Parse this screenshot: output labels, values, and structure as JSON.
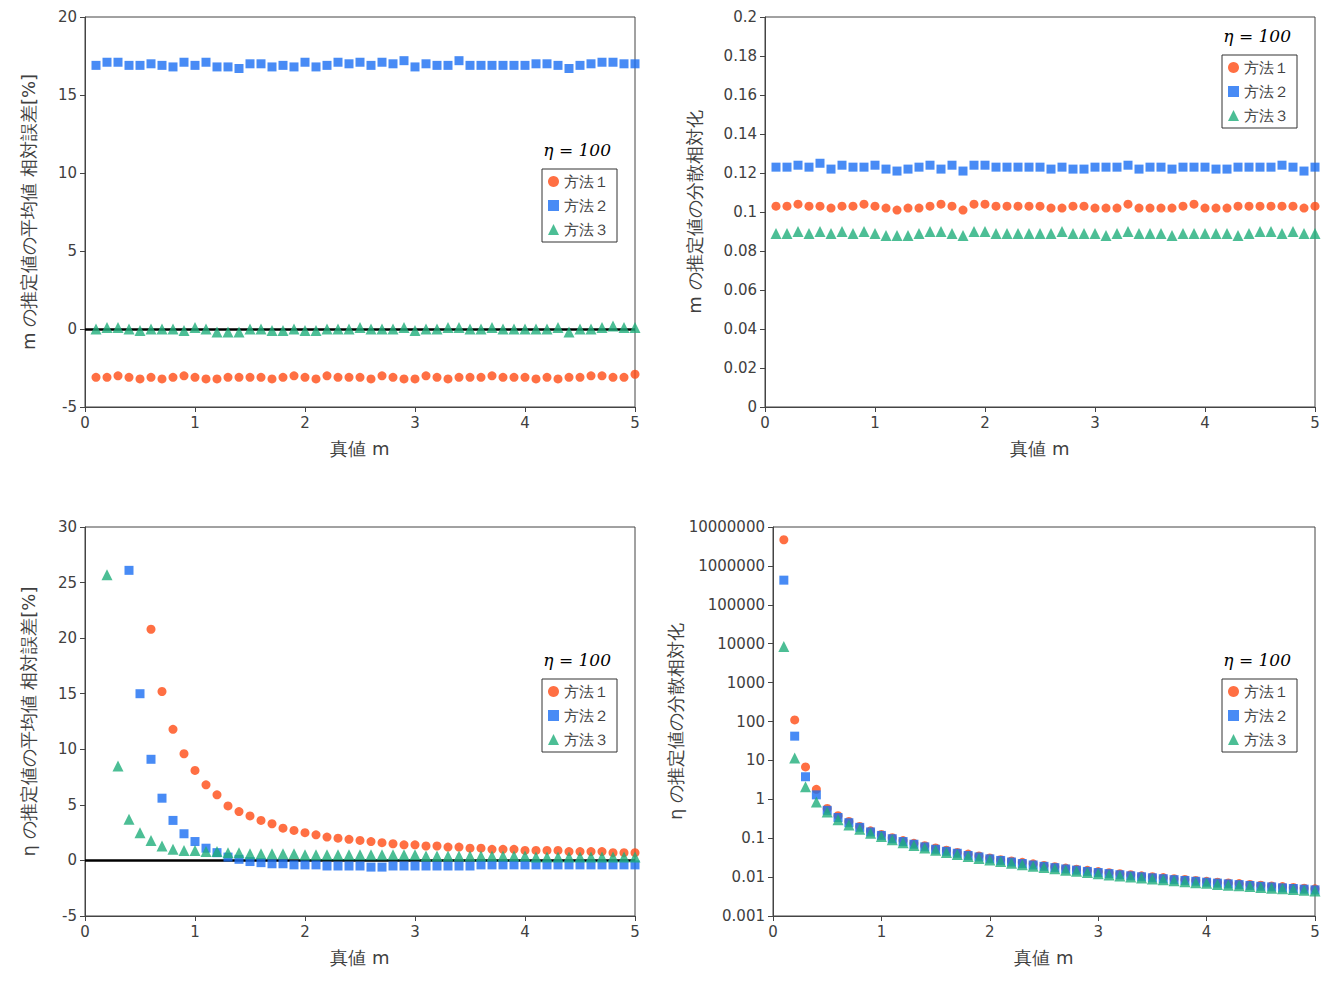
{
  "chart_data": [
    {
      "type": "scatter",
      "xlabel": "真値 m",
      "ylabel": "m の推定値の平均値 相対誤差[%]",
      "legend_title": "η = 100",
      "legend": "center right",
      "grid": false,
      "xlim": [
        0,
        5
      ],
      "xticks": [
        0,
        1,
        2,
        3,
        4,
        5
      ],
      "ylim": [
        -5,
        20
      ],
      "yticks": [
        -5,
        0,
        5,
        10,
        15,
        20
      ],
      "reference_line": 0,
      "x": [
        0.1,
        0.2,
        0.3,
        0.4,
        0.5,
        0.6,
        0.7,
        0.8,
        0.9,
        1.0,
        1.1,
        1.2,
        1.3,
        1.4,
        1.5,
        1.6,
        1.7,
        1.8,
        1.9,
        2.0,
        2.1,
        2.2,
        2.3,
        2.4,
        2.5,
        2.6,
        2.7,
        2.8,
        2.9,
        3.0,
        3.1,
        3.2,
        3.3,
        3.4,
        3.5,
        3.6,
        3.7,
        3.8,
        3.9,
        4.0,
        4.1,
        4.2,
        4.3,
        4.4,
        4.5,
        4.6,
        4.7,
        4.8,
        4.9,
        5.0
      ],
      "series": [
        {
          "name": "方法１",
          "color": "#ff4b14",
          "marker": "circle",
          "values": [
            -3.1,
            -3.1,
            -3.0,
            -3.1,
            -3.2,
            -3.1,
            -3.2,
            -3.1,
            -3.0,
            -3.1,
            -3.2,
            -3.2,
            -3.1,
            -3.1,
            -3.1,
            -3.1,
            -3.2,
            -3.1,
            -3.0,
            -3.1,
            -3.2,
            -3.0,
            -3.1,
            -3.1,
            -3.1,
            -3.2,
            -3.0,
            -3.1,
            -3.2,
            -3.2,
            -3.0,
            -3.1,
            -3.2,
            -3.1,
            -3.1,
            -3.1,
            -3.0,
            -3.1,
            -3.1,
            -3.1,
            -3.2,
            -3.1,
            -3.2,
            -3.1,
            -3.1,
            -3.0,
            -3.0,
            -3.1,
            -3.1,
            -2.9
          ]
        },
        {
          "name": "方法２",
          "color": "#1a6ef2",
          "marker": "square",
          "values": [
            16.9,
            17.1,
            17.1,
            16.9,
            16.9,
            17.0,
            16.9,
            16.8,
            17.1,
            16.9,
            17.1,
            16.8,
            16.8,
            16.7,
            17.0,
            17.0,
            16.8,
            16.9,
            16.8,
            17.1,
            16.8,
            16.9,
            17.1,
            17.0,
            17.1,
            16.9,
            17.1,
            17.0,
            17.2,
            16.8,
            17.0,
            16.9,
            16.9,
            17.2,
            16.9,
            16.9,
            16.9,
            16.9,
            16.9,
            16.9,
            17.0,
            17.0,
            16.9,
            16.7,
            16.9,
            17.0,
            17.1,
            17.1,
            17.0,
            17.0
          ]
        },
        {
          "name": "方法３",
          "color": "#1fae7a",
          "marker": "triangle",
          "values": [
            0.0,
            0.1,
            0.1,
            0.0,
            -0.1,
            0.0,
            0.0,
            0.0,
            -0.1,
            0.1,
            0.0,
            -0.2,
            -0.2,
            -0.2,
            0.0,
            0.0,
            -0.1,
            -0.1,
            0.0,
            -0.1,
            -0.1,
            0.0,
            0.0,
            0.0,
            0.1,
            0.0,
            0.0,
            0.0,
            0.1,
            -0.1,
            0.0,
            0.0,
            0.1,
            0.1,
            0.0,
            0.0,
            0.1,
            0.0,
            0.0,
            0.0,
            0.0,
            0.0,
            0.1,
            -0.2,
            0.0,
            0.0,
            0.1,
            0.2,
            0.1,
            0.1
          ]
        }
      ]
    },
    {
      "type": "scatter",
      "xlabel": "真値 m",
      "ylabel": "m の推定値の分散相対化",
      "legend_title": "η = 100",
      "legend": "upper right",
      "grid": false,
      "xlim": [
        0,
        5
      ],
      "xticks": [
        0,
        1,
        2,
        3,
        4,
        5
      ],
      "ylim": [
        0,
        0.2
      ],
      "yticks": [
        0,
        0.02,
        0.04,
        0.06,
        0.08,
        0.1,
        0.12,
        0.14,
        0.16,
        0.18,
        0.2
      ],
      "x": [
        0.1,
        0.2,
        0.3,
        0.4,
        0.5,
        0.6,
        0.7,
        0.8,
        0.9,
        1.0,
        1.1,
        1.2,
        1.3,
        1.4,
        1.5,
        1.6,
        1.7,
        1.8,
        1.9,
        2.0,
        2.1,
        2.2,
        2.3,
        2.4,
        2.5,
        2.6,
        2.7,
        2.8,
        2.9,
        3.0,
        3.1,
        3.2,
        3.3,
        3.4,
        3.5,
        3.6,
        3.7,
        3.8,
        3.9,
        4.0,
        4.1,
        4.2,
        4.3,
        4.4,
        4.5,
        4.6,
        4.7,
        4.8,
        4.9,
        5.0
      ],
      "series": [
        {
          "name": "方法１",
          "color": "#ff4b14",
          "marker": "circle",
          "values": [
            0.103,
            0.103,
            0.104,
            0.103,
            0.103,
            0.102,
            0.103,
            0.103,
            0.104,
            0.103,
            0.102,
            0.101,
            0.102,
            0.102,
            0.103,
            0.104,
            0.103,
            0.101,
            0.104,
            0.104,
            0.103,
            0.103,
            0.103,
            0.103,
            0.103,
            0.102,
            0.102,
            0.103,
            0.103,
            0.102,
            0.102,
            0.102,
            0.104,
            0.102,
            0.102,
            0.102,
            0.102,
            0.103,
            0.104,
            0.102,
            0.102,
            0.102,
            0.103,
            0.103,
            0.103,
            0.103,
            0.103,
            0.103,
            0.102,
            0.103
          ]
        },
        {
          "name": "方法２",
          "color": "#1a6ef2",
          "marker": "square",
          "values": [
            0.123,
            0.123,
            0.124,
            0.123,
            0.125,
            0.122,
            0.124,
            0.123,
            0.123,
            0.124,
            0.122,
            0.121,
            0.122,
            0.123,
            0.124,
            0.122,
            0.124,
            0.121,
            0.124,
            0.124,
            0.123,
            0.123,
            0.123,
            0.123,
            0.123,
            0.122,
            0.123,
            0.122,
            0.122,
            0.123,
            0.123,
            0.123,
            0.124,
            0.122,
            0.123,
            0.123,
            0.122,
            0.123,
            0.123,
            0.123,
            0.122,
            0.122,
            0.123,
            0.123,
            0.123,
            0.123,
            0.124,
            0.123,
            0.121,
            0.123
          ]
        },
        {
          "name": "方法３",
          "color": "#1fae7a",
          "marker": "triangle",
          "values": [
            0.089,
            0.089,
            0.09,
            0.089,
            0.09,
            0.089,
            0.09,
            0.089,
            0.09,
            0.089,
            0.088,
            0.088,
            0.088,
            0.089,
            0.09,
            0.09,
            0.089,
            0.088,
            0.09,
            0.09,
            0.089,
            0.089,
            0.089,
            0.089,
            0.089,
            0.089,
            0.09,
            0.089,
            0.089,
            0.089,
            0.088,
            0.089,
            0.09,
            0.089,
            0.089,
            0.089,
            0.088,
            0.089,
            0.089,
            0.089,
            0.089,
            0.089,
            0.088,
            0.089,
            0.09,
            0.09,
            0.089,
            0.09,
            0.089,
            0.089
          ]
        }
      ]
    },
    {
      "type": "scatter",
      "xlabel": "真値 m",
      "ylabel": "η の推定値の平均値 相対誤差[%]",
      "legend_title": "η = 100",
      "legend": "center right",
      "grid": false,
      "xlim": [
        0,
        5
      ],
      "xticks": [
        0,
        1,
        2,
        3,
        4,
        5
      ],
      "ylim": [
        -5,
        30
      ],
      "yticks": [
        -5,
        0,
        5,
        10,
        15,
        20,
        25,
        30
      ],
      "reference_line": 0,
      "x": [
        0.1,
        0.2,
        0.3,
        0.4,
        0.5,
        0.6,
        0.7,
        0.8,
        0.9,
        1.0,
        1.1,
        1.2,
        1.3,
        1.4,
        1.5,
        1.6,
        1.7,
        1.8,
        1.9,
        2.0,
        2.1,
        2.2,
        2.3,
        2.4,
        2.5,
        2.6,
        2.7,
        2.8,
        2.9,
        3.0,
        3.1,
        3.2,
        3.3,
        3.4,
        3.5,
        3.6,
        3.7,
        3.8,
        3.9,
        4.0,
        4.1,
        4.2,
        4.3,
        4.4,
        4.5,
        4.6,
        4.7,
        4.8,
        4.9,
        5.0
      ],
      "series": [
        {
          "name": "方法１",
          "color": "#ff4b14",
          "marker": "circle",
          "values": [
            null,
            null,
            null,
            null,
            null,
            20.8,
            15.2,
            11.8,
            9.6,
            8.1,
            6.8,
            5.9,
            4.9,
            4.4,
            4.0,
            3.6,
            3.3,
            2.9,
            2.7,
            2.5,
            2.3,
            2.1,
            2.0,
            1.9,
            1.8,
            1.7,
            1.6,
            1.5,
            1.4,
            1.4,
            1.3,
            1.3,
            1.2,
            1.2,
            1.1,
            1.1,
            1.0,
            1.0,
            1.0,
            0.9,
            0.9,
            0.9,
            0.9,
            0.8,
            0.8,
            0.8,
            0.8,
            0.7,
            0.7,
            0.7
          ]
        },
        {
          "name": "方法２",
          "color": "#1a6ef2",
          "marker": "square",
          "values": [
            null,
            null,
            null,
            26.1,
            15.0,
            9.1,
            5.6,
            3.6,
            2.4,
            1.7,
            1.1,
            0.7,
            0.3,
            0.1,
            -0.1,
            -0.2,
            -0.3,
            -0.3,
            -0.4,
            -0.4,
            -0.4,
            -0.5,
            -0.5,
            -0.5,
            -0.5,
            -0.6,
            -0.6,
            -0.5,
            -0.5,
            -0.5,
            -0.5,
            -0.5,
            -0.5,
            -0.5,
            -0.5,
            -0.4,
            -0.4,
            -0.4,
            -0.4,
            -0.4,
            -0.4,
            -0.4,
            -0.4,
            -0.4,
            -0.4,
            -0.4,
            -0.4,
            -0.4,
            -0.4,
            -0.4
          ]
        },
        {
          "name": "方法３",
          "color": "#1fae7a",
          "marker": "triangle",
          "values": [
            null,
            25.7,
            8.5,
            3.7,
            2.5,
            1.8,
            1.3,
            1.0,
            0.9,
            0.9,
            0.8,
            0.8,
            0.7,
            0.7,
            0.6,
            0.6,
            0.6,
            0.6,
            0.6,
            0.5,
            0.5,
            0.5,
            0.5,
            0.5,
            0.5,
            0.5,
            0.5,
            0.5,
            0.5,
            0.5,
            0.4,
            0.4,
            0.4,
            0.4,
            0.4,
            0.4,
            0.4,
            0.4,
            0.4,
            0.4,
            0.3,
            0.3,
            0.3,
            0.3,
            0.3,
            0.3,
            0.3,
            0.3,
            0.3,
            0.3
          ]
        }
      ]
    },
    {
      "type": "scatter",
      "xlabel": "真値 m",
      "ylabel": "η の推定値の分散相対化",
      "legend_title": "η = 100",
      "legend": "center right",
      "grid": false,
      "log": "y",
      "xlim": [
        0,
        5
      ],
      "xticks": [
        0,
        1,
        2,
        3,
        4,
        5
      ],
      "ylim": [
        0.001,
        10000000
      ],
      "yticks": [
        0.001,
        0.01,
        0.1,
        1,
        10,
        100,
        1000,
        10000,
        100000,
        1000000,
        10000000
      ],
      "x": [
        0.1,
        0.2,
        0.3,
        0.4,
        0.5,
        0.6,
        0.7,
        0.8,
        0.9,
        1.0,
        1.1,
        1.2,
        1.3,
        1.4,
        1.5,
        1.6,
        1.7,
        1.8,
        1.9,
        2.0,
        2.1,
        2.2,
        2.3,
        2.4,
        2.5,
        2.6,
        2.7,
        2.8,
        2.9,
        3.0,
        3.1,
        3.2,
        3.3,
        3.4,
        3.5,
        3.6,
        3.7,
        3.8,
        3.9,
        4.0,
        4.1,
        4.2,
        4.3,
        4.4,
        4.5,
        4.6,
        4.7,
        4.8,
        4.9,
        5.0
      ],
      "series": [
        {
          "name": "方法１",
          "color": "#ff4b14",
          "marker": "circle",
          "values": [
            4700000,
            110,
            6.8,
            1.8,
            0.58,
            0.38,
            0.27,
            0.2,
            0.155,
            0.125,
            0.103,
            0.087,
            0.074,
            0.064,
            0.056,
            0.049,
            0.043,
            0.039,
            0.035,
            0.031,
            0.028,
            0.026,
            0.024,
            0.022,
            0.02,
            0.0185,
            0.0171,
            0.016,
            0.0149,
            0.0139,
            0.013,
            0.0122,
            0.0115,
            0.0108,
            0.0102,
            0.0097,
            0.0091,
            0.0087,
            0.0082,
            0.0078,
            0.0074,
            0.0071,
            0.0068,
            0.0065,
            0.0062,
            0.0059,
            0.0057,
            0.0054,
            0.0052,
            0.005
          ]
        },
        {
          "name": "方法２",
          "color": "#1a6ef2",
          "marker": "square",
          "values": [
            430000,
            42,
            3.8,
            1.3,
            0.52,
            0.34,
            0.25,
            0.19,
            0.145,
            0.118,
            0.097,
            0.082,
            0.07,
            0.06,
            0.052,
            0.046,
            0.041,
            0.036,
            0.033,
            0.0295,
            0.0268,
            0.0244,
            0.0223,
            0.0205,
            0.0189,
            0.0175,
            0.0162,
            0.0151,
            0.014,
            0.0131,
            0.0123,
            0.0115,
            0.0108,
            0.0102,
            0.0096,
            0.0091,
            0.0086,
            0.0082,
            0.0078,
            0.0074,
            0.007,
            0.0067,
            0.0064,
            0.0061,
            0.0058,
            0.0056,
            0.0053,
            0.0051,
            0.0049,
            0.0047
          ]
        },
        {
          "name": "方法３",
          "color": "#1fae7a",
          "marker": "triangle",
          "values": [
            8500,
            11.5,
            2.1,
            0.85,
            0.47,
            0.3,
            0.22,
            0.17,
            0.135,
            0.11,
            0.091,
            0.076,
            0.065,
            0.056,
            0.049,
            0.043,
            0.038,
            0.034,
            0.03,
            0.0275,
            0.025,
            0.0228,
            0.0208,
            0.0191,
            0.0176,
            0.0163,
            0.0151,
            0.0141,
            0.0131,
            0.0122,
            0.0114,
            0.0107,
            0.0101,
            0.0095,
            0.009,
            0.0085,
            0.008,
            0.0076,
            0.0072,
            0.0069,
            0.0065,
            0.0062,
            0.006,
            0.0057,
            0.0054,
            0.0052,
            0.005,
            0.0048,
            0.0046,
            0.0044
          ]
        }
      ]
    }
  ]
}
